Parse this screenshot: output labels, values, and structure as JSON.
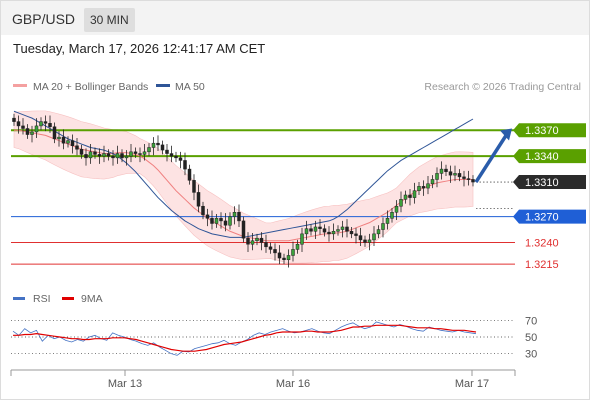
{
  "header": {
    "symbol": "GBP/USD",
    "interval": "30 MIN",
    "datetime": "Tuesday, March 17, 2026 12:41:17 AM CET"
  },
  "legend": {
    "ma20": {
      "label": "MA 20 + Bollinger Bands",
      "color": "#f08080"
    },
    "ma50": {
      "label": "MA 50",
      "color": "#2f5597"
    },
    "research": "Research © 2026 Trading Central"
  },
  "rsi_legend": {
    "rsi": {
      "label": "RSI",
      "color": "#4472c4"
    },
    "ma9": {
      "label": "9MA",
      "color": "#e00000"
    }
  },
  "chart_data": [
    {
      "type": "candlestick",
      "title": "GBP/USD",
      "x_ticks": [
        "Mar 13",
        "Mar 16",
        "Mar 17"
      ],
      "price_levels": [
        {
          "value": 1.337,
          "label": "1.3370",
          "kind": "target",
          "color": "#5aa000"
        },
        {
          "value": 1.334,
          "label": "1.3340",
          "kind": "target",
          "color": "#5aa000"
        },
        {
          "value": 1.331,
          "label": "1.3310",
          "kind": "last",
          "color": "#2b2b2b"
        },
        {
          "value": 1.327,
          "label": "1.3270",
          "kind": "pivot",
          "color": "#1f5fd6"
        },
        {
          "value": 1.324,
          "label": "1.3240",
          "kind": "support",
          "color": "#e03030"
        },
        {
          "value": 1.3215,
          "label": "1.3215",
          "kind": "support",
          "color": "#e03030"
        }
      ],
      "ylim": [
        1.3185,
        1.3405
      ],
      "closes": [
        1.338,
        1.3375,
        1.3372,
        1.3365,
        1.3368,
        1.3375,
        1.338,
        1.3378,
        1.3374,
        1.336,
        1.3362,
        1.3355,
        1.3358,
        1.3352,
        1.3348,
        1.3342,
        1.3338,
        1.3345,
        1.3342,
        1.334,
        1.3343,
        1.334,
        1.3338,
        1.3343,
        1.3338,
        1.334,
        1.3345,
        1.3343,
        1.3342,
        1.3345,
        1.335,
        1.3355,
        1.3353,
        1.3347,
        1.3343,
        1.334,
        1.3338,
        1.3335,
        1.3325,
        1.3312,
        1.3298,
        1.3282,
        1.3272,
        1.3268,
        1.3262,
        1.3268,
        1.3265,
        1.326,
        1.327,
        1.3275,
        1.3265,
        1.3245,
        1.3238,
        1.3242,
        1.3245,
        1.324,
        1.3235,
        1.3232,
        1.3228,
        1.3222,
        1.322,
        1.3225,
        1.3232,
        1.3238,
        1.325,
        1.3256,
        1.3253,
        1.3258,
        1.3256,
        1.3252,
        1.325,
        1.3253,
        1.3255,
        1.3258,
        1.3253,
        1.325,
        1.3248,
        1.3243,
        1.324,
        1.3243,
        1.325,
        1.3255,
        1.3262,
        1.3268,
        1.3275,
        1.3282,
        1.329,
        1.3295,
        1.3292,
        1.33,
        1.3305,
        1.3303,
        1.3308,
        1.3313,
        1.332,
        1.3325,
        1.3322,
        1.3318,
        1.332,
        1.3316,
        1.3314,
        1.3313,
        1.331
      ],
      "ma20": [
        1.337,
        1.337,
        1.3369,
        1.3368,
        1.3367,
        1.3366,
        1.3365,
        1.3364,
        1.3362,
        1.336,
        1.3358,
        1.3356,
        1.3354,
        1.3352,
        1.335,
        1.3348,
        1.3347,
        1.3346,
        1.3345,
        1.3344,
        1.3343,
        1.3343,
        1.3343,
        1.3344,
        1.3344,
        1.3344,
        1.3343,
        1.3342,
        1.334,
        1.3337,
        1.3333,
        1.3329,
        1.3324,
        1.3318,
        1.3312,
        1.3306,
        1.33,
        1.3295,
        1.329,
        1.3285,
        1.328,
        1.3276,
        1.3272,
        1.3268,
        1.3265,
        1.3262,
        1.3259,
        1.3256,
        1.3253,
        1.3251,
        1.3249,
        1.3247,
        1.3246,
        1.3245,
        1.3244,
        1.3243,
        1.3242,
        1.3242,
        1.3242,
        1.3242,
        1.3242,
        1.3242,
        1.3243,
        1.3244,
        1.3245,
        1.3246,
        1.3247,
        1.3248,
        1.3249,
        1.325,
        1.325,
        1.3251,
        1.3251,
        1.3252,
        1.3253,
        1.3255,
        1.3257,
        1.3259,
        1.3261,
        1.3263,
        1.3266,
        1.3269,
        1.3272,
        1.3275,
        1.3279,
        1.3283,
        1.3287,
        1.3291,
        1.3295,
        1.3298,
        1.3301,
        1.3303,
        1.3305,
        1.3307,
        1.3309,
        1.331,
        1.3311,
        1.3312,
        1.3313,
        1.3313,
        1.3313,
        1.3313,
        1.3313
      ],
      "ma50": [
        1.3392,
        1.339,
        1.3388,
        1.3386,
        1.3384,
        1.3381,
        1.3378,
        1.3375,
        1.3372,
        1.3369,
        1.3366,
        1.3363,
        1.336,
        1.3358,
        1.3356,
        1.3354,
        1.3352,
        1.335,
        1.3349,
        1.3348,
        1.3347,
        1.3345,
        1.3343,
        1.334,
        1.3336,
        1.3332,
        1.3327,
        1.3322,
        1.3316,
        1.331,
        1.3304,
        1.3298,
        1.3292,
        1.3287,
        1.3282,
        1.3277,
        1.3273,
        1.3269,
        1.3265,
        1.3262,
        1.3259,
        1.3256,
        1.3254,
        1.3252,
        1.325,
        1.3249,
        1.3248,
        1.3247,
        1.3246,
        1.3246,
        1.3246,
        1.3246,
        1.3247,
        1.3248,
        1.3249,
        1.325,
        1.3251,
        1.3252,
        1.3253,
        1.3254,
        1.3255,
        1.3256,
        1.3257,
        1.3258,
        1.3259,
        1.326,
        1.3261,
        1.3262,
        1.3263,
        1.3264,
        1.3265,
        1.3267,
        1.327,
        1.3274,
        1.3278,
        1.3283,
        1.3288,
        1.3293,
        1.3298,
        1.3303,
        1.3308,
        1.3313,
        1.3318,
        1.3323,
        1.3327,
        1.3331,
        1.3335,
        1.3338,
        1.3341,
        1.3344,
        1.3347,
        1.335,
        1.3353,
        1.3356,
        1.3359,
        1.3362,
        1.3365,
        1.3368,
        1.3371,
        1.3374,
        1.3377,
        1.338,
        1.3383
      ]
    },
    {
      "type": "line",
      "title": "RSI",
      "ylim": [
        20,
        80
      ],
      "y_ticks": [
        30,
        50,
        70
      ],
      "series": [
        {
          "name": "RSI",
          "values": [
            57,
            52,
            60,
            55,
            58,
            45,
            52,
            48,
            50,
            46,
            44,
            47,
            45,
            50,
            52,
            48,
            46,
            55,
            52,
            50,
            47,
            45,
            42,
            40,
            43,
            38,
            34,
            30,
            28,
            33,
            32,
            36,
            38,
            40,
            42,
            43,
            46,
            42,
            40,
            44,
            47,
            52,
            55,
            53,
            56,
            58,
            60,
            57,
            55,
            56,
            58,
            60,
            57,
            55,
            54,
            58,
            62,
            65,
            67,
            63,
            60,
            62,
            68,
            66,
            64,
            62,
            65,
            63,
            60,
            58,
            57,
            62,
            60,
            58,
            57,
            56,
            58,
            56,
            55,
            54
          ]
        },
        {
          "name": "9MA",
          "values": [
            52,
            52,
            53,
            53,
            54,
            53,
            52,
            51,
            50,
            49,
            48,
            48,
            47,
            47,
            48,
            48,
            48,
            49,
            49,
            49,
            48,
            47,
            45,
            43,
            41,
            39,
            37,
            35,
            34,
            33,
            33,
            33,
            34,
            35,
            37,
            39,
            41,
            42,
            43,
            44,
            46,
            48,
            50,
            52,
            53,
            55,
            56,
            56,
            56,
            56,
            57,
            57,
            56,
            56,
            56,
            57,
            58,
            60,
            62,
            62,
            63,
            63,
            64,
            64,
            64,
            64,
            64,
            63,
            62,
            61,
            61,
            61,
            60,
            60,
            59,
            58,
            58,
            58,
            57,
            56
          ]
        }
      ]
    }
  ]
}
